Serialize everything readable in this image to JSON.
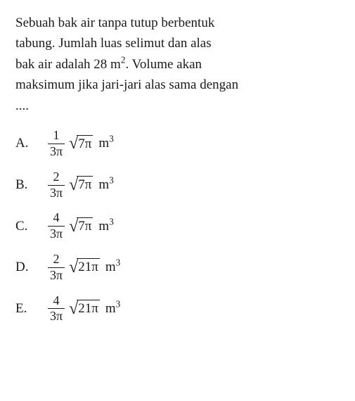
{
  "text_color": "#1a1a1a",
  "background_color": "#ffffff",
  "question": {
    "line1": "Sebuah bak air tanpa tutup berbentuk",
    "line2": "tabung. Jumlah luas selimut dan alas",
    "line3_pre": "bak air adalah 28 m",
    "line3_sup": "2",
    "line3_post": ". Volume akan",
    "line4": "maksimum jika jari-jari alas sama dengan",
    "line5": "....",
    "fontsize": 19
  },
  "options": [
    {
      "letter": "A.",
      "frac_num": "1",
      "frac_den": "3π",
      "sqrt_content": "7π",
      "unit": "m",
      "unit_sup": "3"
    },
    {
      "letter": "B.",
      "frac_num": "2",
      "frac_den": "3π",
      "sqrt_content": "7π",
      "unit": "m",
      "unit_sup": "3"
    },
    {
      "letter": "C.",
      "frac_num": "4",
      "frac_den": "3π",
      "sqrt_content": "7π",
      "unit": "m",
      "unit_sup": "3"
    },
    {
      "letter": "D.",
      "frac_num": "2",
      "frac_den": "3π",
      "sqrt_content": "21π",
      "unit": "m",
      "unit_sup": "3"
    },
    {
      "letter": "E.",
      "frac_num": "4",
      "frac_den": "3π",
      "sqrt_content": "21π",
      "unit": "m",
      "unit_sup": "3"
    }
  ]
}
